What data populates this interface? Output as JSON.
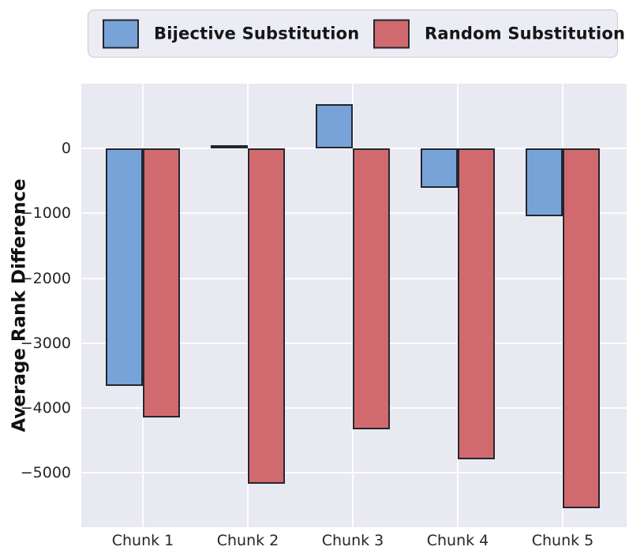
{
  "chart_data": {
    "type": "bar",
    "categories": [
      "Chunk 1",
      "Chunk 2",
      "Chunk 3",
      "Chunk 4",
      "Chunk 5"
    ],
    "series": [
      {
        "name": "Bijective Substitution",
        "color": "#78a3d8",
        "values": [
          -3660,
          50,
          680,
          -600,
          -1040
        ]
      },
      {
        "name": "Random Substitution",
        "color": "#d16a6f",
        "values": [
          -4140,
          -5170,
          -4330,
          -4790,
          -5550
        ]
      }
    ],
    "title": "",
    "xlabel": "",
    "ylabel": "Average Rank Difference",
    "ylim": [
      -5836,
      1000
    ],
    "yticks": [
      0,
      -1000,
      -2000,
      -3000,
      -4000,
      -5000
    ],
    "ytick_labels": [
      "0",
      "−1000",
      "−2000",
      "−3000",
      "−4000",
      "−5000"
    ],
    "grid": true,
    "legend_position": "top",
    "plot_bg": "#e9e9f2",
    "grid_color": "rgba(255,255,255,0.9)",
    "bar_edge_color": "#24262e"
  }
}
